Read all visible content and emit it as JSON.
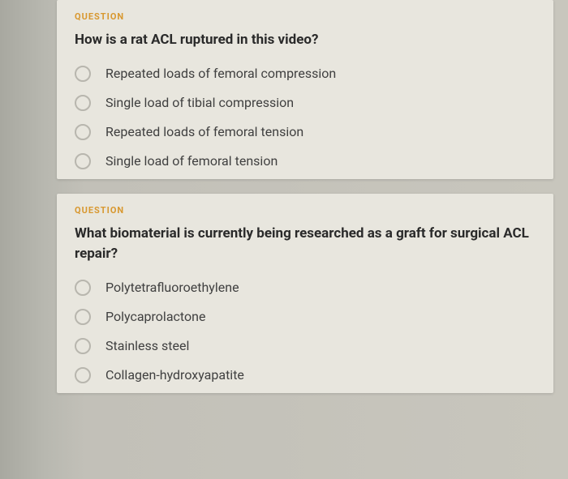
{
  "colors": {
    "page_bg_left": "#a8a8a0",
    "page_bg_right": "#c8c6bd",
    "card_bg": "#e8e6de",
    "label_color": "#d89830",
    "question_color": "#2a2a2a",
    "option_color": "#404040",
    "radio_border": "#b8b6ae"
  },
  "typography": {
    "label_fontsize": 11,
    "label_weight": 700,
    "question_fontsize": 17,
    "question_weight": 700,
    "option_fontsize": 16,
    "option_weight": 400
  },
  "questions": [
    {
      "label": "QUESTION",
      "text": "How is a rat ACL ruptured in this video?",
      "options": [
        "Repeated loads of femoral compression",
        "Single load of tibial compression",
        "Repeated loads of femoral tension",
        "Single load of femoral tension"
      ]
    },
    {
      "label": "QUESTION",
      "text": "What biomaterial is currently being researched as a graft for surgical ACL repair?",
      "options": [
        "Polytetrafluoroethylene",
        "Polycaprolactone",
        "Stainless steel",
        "Collagen-hydroxyapatite"
      ]
    }
  ]
}
